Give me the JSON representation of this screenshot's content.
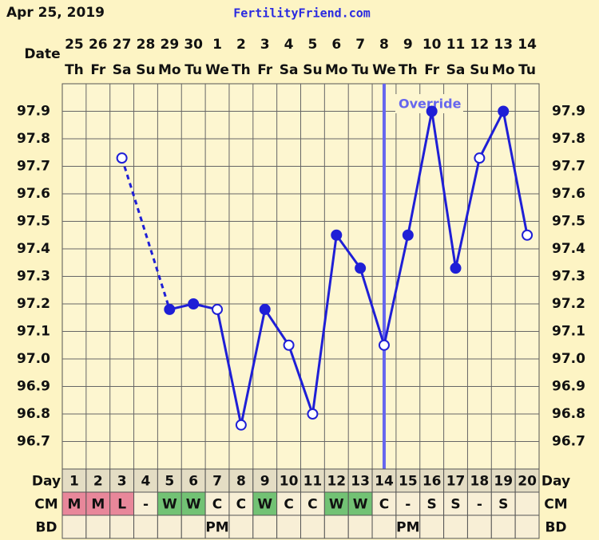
{
  "header": {
    "date": "Apr 25, 2019",
    "site": "FertilityFriend.com"
  },
  "chart_data": {
    "type": "line",
    "x_label": "Date",
    "dates": [
      25,
      26,
      27,
      28,
      29,
      30,
      1,
      2,
      3,
      4,
      5,
      6,
      7,
      8,
      9,
      10,
      11,
      12,
      13,
      14
    ],
    "weekdays": [
      "Th",
      "Fr",
      "Sa",
      "Su",
      "Mo",
      "Tu",
      "We",
      "Th",
      "Fr",
      "Sa",
      "Su",
      "Mo",
      "Tu",
      "We",
      "Th",
      "Fr",
      "Sa",
      "Su",
      "Mo",
      "Tu"
    ],
    "series": [
      {
        "color": "#1f1fd6",
        "values": [
          null,
          null,
          97.73,
          null,
          97.18,
          97.2,
          97.18,
          96.76,
          97.18,
          97.05,
          96.8,
          97.45,
          97.33,
          97.05,
          97.45,
          97.9,
          97.33,
          97.73,
          97.9,
          97.45
        ],
        "markers": [
          null,
          null,
          "open",
          null,
          "filled",
          "filled",
          "open",
          "open",
          "filled",
          "open",
          "open",
          "filled",
          "filled",
          "open",
          "filled",
          "filled",
          "filled",
          "open",
          "filled",
          "open"
        ]
      }
    ],
    "ylim": [
      96.6,
      98.0
    ],
    "yticks": [
      96.7,
      96.8,
      96.9,
      {
        "value": 97,
        "label": "97.0"
      },
      97.1,
      97.2,
      97.3,
      97.4,
      97.5,
      97.6,
      97.7,
      97.8,
      97.9
    ],
    "grid": true,
    "annotation": {
      "text": "Override",
      "day_index": 13,
      "color": "#6666ee"
    },
    "rows": [
      {
        "label": "Day",
        "values": [
          1,
          2,
          3,
          4,
          5,
          6,
          7,
          8,
          9,
          10,
          11,
          12,
          13,
          14,
          15,
          16,
          17,
          18,
          19,
          20
        ]
      },
      {
        "label": "CM",
        "values": [
          "M",
          "M",
          "L",
          "-",
          "W",
          "W",
          "C",
          "C",
          "W",
          "C",
          "C",
          "W",
          "W",
          "C",
          "-",
          "S",
          "S",
          "-",
          "S",
          null
        ],
        "cell_colors": [
          "#e8879a",
          "#e8879a",
          "#e8879a",
          null,
          "#72c274",
          "#72c274",
          null,
          null,
          "#72c274",
          null,
          null,
          "#72c274",
          "#72c274",
          null,
          null,
          null,
          null,
          null,
          null,
          null
        ]
      },
      {
        "label": "BD",
        "values": [
          null,
          null,
          null,
          null,
          null,
          null,
          "PM",
          null,
          null,
          null,
          null,
          null,
          null,
          null,
          "PM",
          null,
          null,
          null,
          null,
          null
        ]
      }
    ]
  }
}
